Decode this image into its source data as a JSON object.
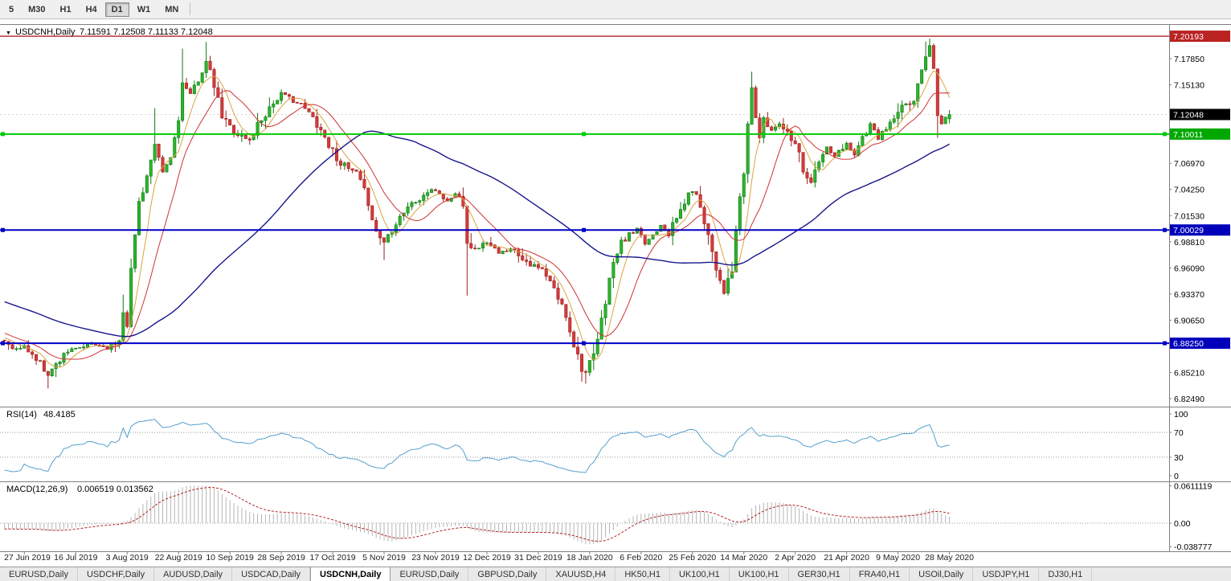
{
  "toolbar": {
    "timeframes": [
      {
        "label": "5",
        "active": false
      },
      {
        "label": "M30",
        "active": false
      },
      {
        "label": "H1",
        "active": false
      },
      {
        "label": "H4",
        "active": false
      },
      {
        "label": "D1",
        "active": true
      },
      {
        "label": "W1",
        "active": false
      },
      {
        "label": "MN",
        "active": false
      }
    ]
  },
  "chart_header": {
    "symbol_period": "USDCNH,Daily",
    "ohlc_text": "7.11591 7.12508 7.11133 7.12048"
  },
  "rsi_header": {
    "name": "RSI(14)",
    "value": "48.4185"
  },
  "macd_header": {
    "name": "MACD(12,26,9)",
    "values": "0.006519 0.013562"
  },
  "tabbar": {
    "tabs": [
      {
        "label": "EURUSD,Daily",
        "active": false
      },
      {
        "label": "USDCHF,Daily",
        "active": false
      },
      {
        "label": "AUDUSD,Daily",
        "active": false
      },
      {
        "label": "USDCAD,Daily",
        "active": false
      },
      {
        "label": "USDCNH,Daily",
        "active": true
      },
      {
        "label": "EURUSD,Daily",
        "active": false
      },
      {
        "label": "GBPUSD,Daily",
        "active": false
      },
      {
        "label": "XAUUSD,H4",
        "active": false
      },
      {
        "label": "HK50,H1",
        "active": false
      },
      {
        "label": "UK100,H1",
        "active": false
      },
      {
        "label": "UK100,H1",
        "active": false
      },
      {
        "label": "GER30,H1",
        "active": false
      },
      {
        "label": "FRA40,H1",
        "active": false
      },
      {
        "label": "USOil,Daily",
        "active": false
      },
      {
        "label": "USDJPY,H1",
        "active": false
      },
      {
        "label": "DJ30,H1",
        "active": false
      }
    ]
  },
  "chart_data": {
    "type": "candlestick",
    "symbol": "USDCNH",
    "timeframe": "Daily",
    "bars": 240,
    "seed": 11,
    "last_bar": {
      "open": 7.11591,
      "high": 7.12508,
      "low": 7.11133,
      "close": 7.12048
    },
    "current_price": {
      "price": 7.12048,
      "label": "7.12048",
      "badge_color": "#000000"
    },
    "y_axis": {
      "min": 6.8199,
      "max": 7.212,
      "decimals": 5,
      "ticks": [
        7.1785,
        7.1513,
        7.1241,
        7.0969,
        7.0697,
        7.0425,
        7.0153,
        6.9881,
        6.9609,
        6.9337,
        6.9065,
        6.8793,
        6.8521,
        6.8249
      ]
    },
    "x_axis": {
      "first_bar": 5,
      "bar_step": 13,
      "labels": [
        "27 Jun 2019",
        "16 Jul 2019",
        "3 Aug 2019",
        "22 Aug 2019",
        "10 Sep 2019",
        "28 Sep 2019",
        "17 Oct 2019",
        "5 Nov 2019",
        "23 Nov 2019",
        "12 Dec 2019",
        "31 Dec 2019",
        "18 Jan 2020",
        "6 Feb 2020",
        "25 Feb 2020",
        "14 Mar 2020",
        "2 Apr 2020",
        "21 Apr 2020",
        "9 May 2020",
        "28 May 2020"
      ]
    },
    "levels": [
      {
        "price": 7.20193,
        "label": "7.20193",
        "color": "#b22222",
        "badge_color": "#bb2222",
        "width": 1.4,
        "handles": false
      },
      {
        "price": 7.10011,
        "label": "7.10011",
        "color": "#00cc00",
        "badge_color": "#00a800",
        "width": 2,
        "handles": true
      },
      {
        "price": 7.00029,
        "label": "7.00029",
        "color": "#0000c8",
        "badge_color": "#0000bb",
        "width": 2,
        "handles": true
      },
      {
        "price": 6.8825,
        "label": "6.88250",
        "color": "#0000c8",
        "badge_color": "#0000bb",
        "width": 2,
        "handles": true
      }
    ],
    "candle_up": "#2bb52b",
    "candle_up_border": "#117711",
    "candle_down": "#d63a3a",
    "candle_down_border": "#9c1f1f",
    "moving_averages": [
      {
        "period": 6,
        "color": "#d9a441",
        "width": 1
      },
      {
        "period": 13,
        "color": "#cc3333",
        "width": 1
      },
      {
        "period": 60,
        "color": "#16168c",
        "width": 1.4
      }
    ],
    "warmup": {
      "bars": 60,
      "from": 6.968,
      "to": 6.886
    },
    "price_anchors": [
      [
        0,
        6.885
      ],
      [
        3,
        6.876
      ],
      [
        5,
        6.879
      ],
      [
        8,
        6.866
      ],
      [
        11,
        6.85
      ],
      [
        13,
        6.86
      ],
      [
        15,
        6.873
      ],
      [
        18,
        6.876
      ],
      [
        22,
        6.882
      ],
      [
        26,
        6.878
      ],
      [
        29,
        6.886
      ],
      [
        30,
        6.918
      ],
      [
        31,
        6.904
      ],
      [
        32,
        6.958
      ],
      [
        33,
        6.995
      ],
      [
        34,
        7.03
      ],
      [
        36,
        7.056
      ],
      [
        38,
        7.088
      ],
      [
        40,
        7.06
      ],
      [
        42,
        7.075
      ],
      [
        44,
        7.118
      ],
      [
        45,
        7.152
      ],
      [
        47,
        7.14
      ],
      [
        49,
        7.158
      ],
      [
        51,
        7.175
      ],
      [
        53,
        7.15
      ],
      [
        55,
        7.118
      ],
      [
        57,
        7.108
      ],
      [
        59,
        7.1
      ],
      [
        62,
        7.093
      ],
      [
        64,
        7.11
      ],
      [
        67,
        7.128
      ],
      [
        70,
        7.142
      ],
      [
        73,
        7.136
      ],
      [
        76,
        7.126
      ],
      [
        79,
        7.112
      ],
      [
        83,
        7.082
      ],
      [
        86,
        7.066
      ],
      [
        89,
        7.058
      ],
      [
        92,
        7.03
      ],
      [
        94,
        6.998
      ],
      [
        96,
        6.988
      ],
      [
        99,
        7.01
      ],
      [
        102,
        7.025
      ],
      [
        105,
        7.032
      ],
      [
        107,
        7.04
      ],
      [
        109,
        7.042
      ],
      [
        112,
        7.03
      ],
      [
        114,
        7.038
      ],
      [
        116,
        7.03
      ],
      [
        117,
        6.99
      ],
      [
        119,
        6.98
      ],
      [
        122,
        6.988
      ],
      [
        125,
        6.975
      ],
      [
        128,
        6.982
      ],
      [
        131,
        6.972
      ],
      [
        134,
        6.962
      ],
      [
        136,
        6.958
      ],
      [
        139,
        6.938
      ],
      [
        142,
        6.912
      ],
      [
        144,
        6.882
      ],
      [
        146,
        6.858
      ],
      [
        147,
        6.852
      ],
      [
        149,
        6.868
      ],
      [
        151,
        6.905
      ],
      [
        153,
        6.95
      ],
      [
        155,
        6.978
      ],
      [
        157,
        6.992
      ],
      [
        160,
        7.0
      ],
      [
        162,
        6.986
      ],
      [
        164,
        6.996
      ],
      [
        166,
        7.006
      ],
      [
        168,
        6.996
      ],
      [
        170,
        7.012
      ],
      [
        172,
        7.03
      ],
      [
        174,
        7.042
      ],
      [
        176,
        7.026
      ],
      [
        178,
        6.996
      ],
      [
        180,
        6.962
      ],
      [
        182,
        6.936
      ],
      [
        184,
        6.956
      ],
      [
        185,
        7.0
      ],
      [
        187,
        7.06
      ],
      [
        188,
        7.11
      ],
      [
        189,
        7.148
      ],
      [
        190,
        7.118
      ],
      [
        191,
        7.096
      ],
      [
        192,
        7.114
      ],
      [
        194,
        7.104
      ],
      [
        196,
        7.112
      ],
      [
        198,
        7.102
      ],
      [
        200,
        7.094
      ],
      [
        202,
        7.064
      ],
      [
        204,
        7.05
      ],
      [
        206,
        7.07
      ],
      [
        208,
        7.086
      ],
      [
        210,
        7.076
      ],
      [
        213,
        7.09
      ],
      [
        215,
        7.08
      ],
      [
        217,
        7.096
      ],
      [
        219,
        7.11
      ],
      [
        221,
        7.096
      ],
      [
        223,
        7.106
      ],
      [
        226,
        7.12
      ],
      [
        228,
        7.132
      ],
      [
        230,
        7.136
      ],
      [
        232,
        7.165
      ],
      [
        233,
        7.185
      ],
      [
        234,
        7.19
      ],
      [
        235,
        7.172
      ],
      [
        236,
        7.12
      ],
      [
        237,
        7.108
      ],
      [
        238,
        7.118
      ],
      [
        239,
        7.12
      ]
    ],
    "wick_overrides": [
      {
        "b": 11,
        "low": 6.8355
      },
      {
        "b": 30,
        "high": 6.933
      },
      {
        "b": 38,
        "high": 7.127
      },
      {
        "b": 45,
        "high": 7.189
      },
      {
        "b": 51,
        "high": 7.196
      },
      {
        "b": 96,
        "low": 6.969
      },
      {
        "b": 117,
        "low": 6.932
      },
      {
        "b": 146,
        "low": 6.8425
      },
      {
        "b": 147,
        "low": 6.8405
      },
      {
        "b": 189,
        "high": 7.165
      },
      {
        "b": 233,
        "high": 7.1964
      },
      {
        "b": 236,
        "low": 7.0962
      }
    ],
    "rsi": {
      "period": 14,
      "color": "#53a0cc",
      "ticks": [
        100,
        70,
        30,
        0
      ],
      "guide_levels": [
        70,
        30
      ]
    },
    "macd": {
      "fast": 12,
      "slow": 26,
      "signal": 9,
      "hist_color": "#b5b5b5",
      "signal_color": "#b22222",
      "ticks": [
        {
          "label": "0.0611119",
          "v": 0.0611119
        },
        {
          "label": "0.00",
          "v": 0
        },
        {
          "label": "-0.038777",
          "v": -0.038777
        }
      ]
    }
  }
}
